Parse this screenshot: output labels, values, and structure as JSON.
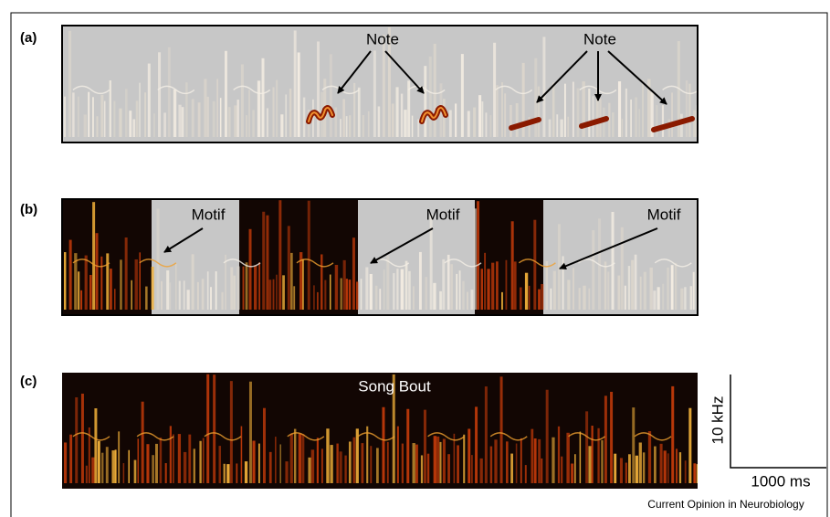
{
  "panels": [
    {
      "label": "(a)",
      "annotations": [
        "Note",
        "Note"
      ]
    },
    {
      "label": "(b)",
      "annotations": [
        "Motif",
        "Motif",
        "Motif"
      ]
    },
    {
      "label": "(c)",
      "annotations": [
        "Song Bout"
      ]
    }
  ],
  "scale_bar": {
    "vertical": "10 kHz",
    "horizontal": "1000 ms"
  },
  "credit": "Current Opinion in Neurobiology"
}
